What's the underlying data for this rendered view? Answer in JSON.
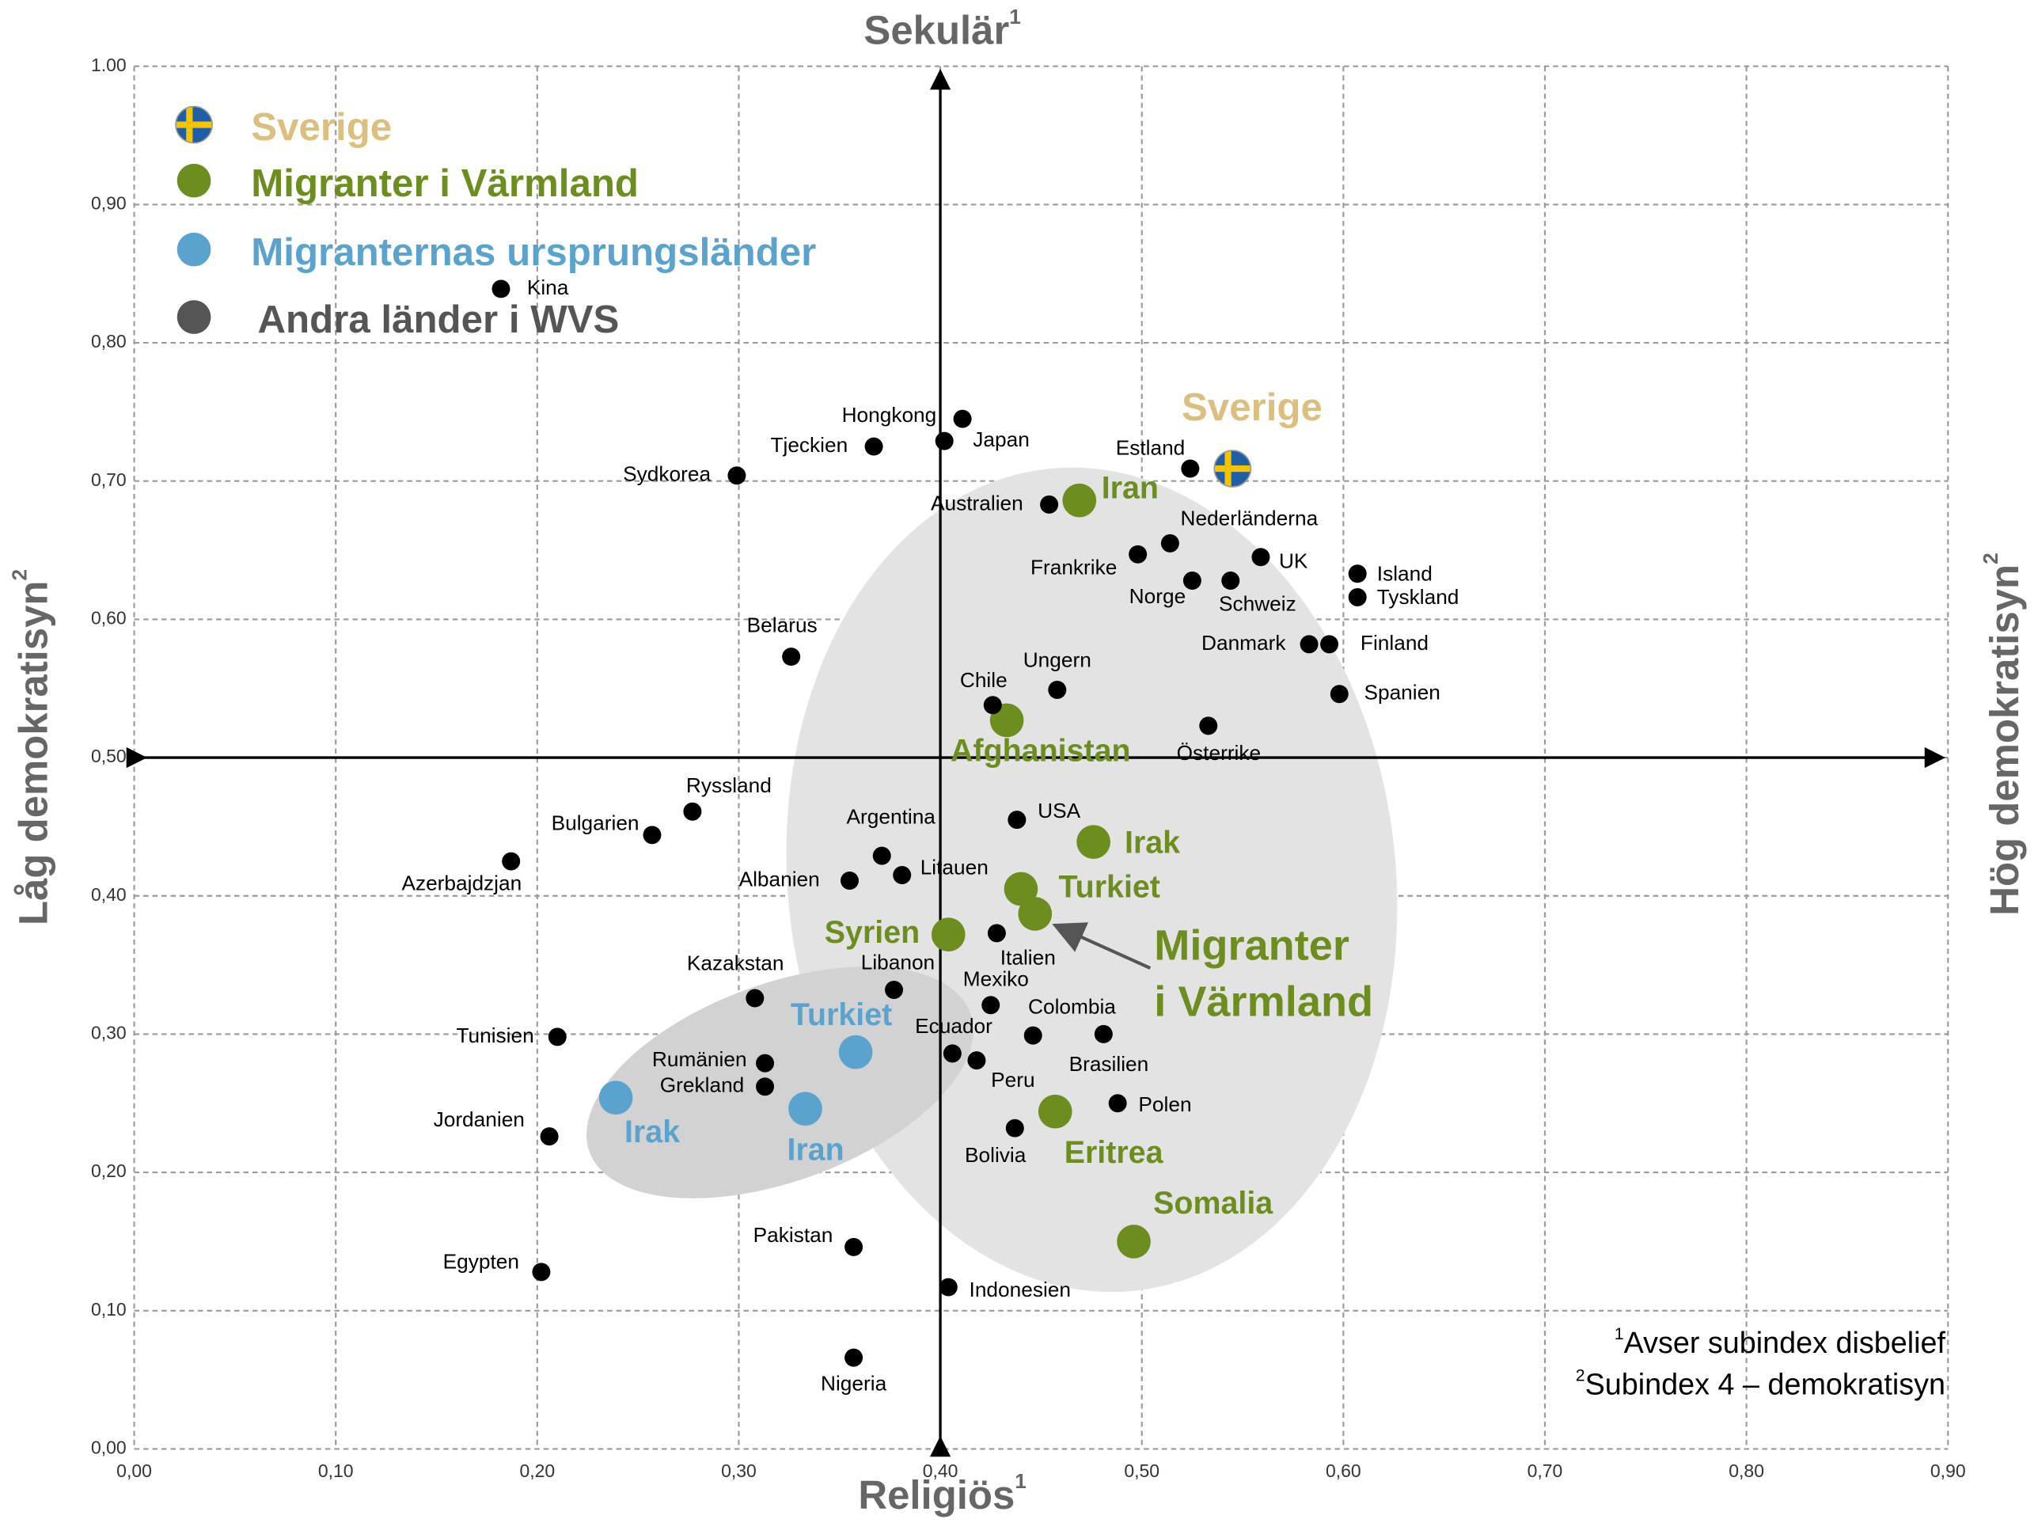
{
  "chart_data": {
    "type": "scatter",
    "xlim": [
      0,
      0.9
    ],
    "ylim": [
      0,
      1
    ],
    "xticks": [
      {
        "value": 0,
        "label": "0,00"
      },
      {
        "value": 0.1,
        "label": "0,10"
      },
      {
        "value": 0.2,
        "label": "0,20"
      },
      {
        "value": 0.3,
        "label": "0,30"
      },
      {
        "value": 0.4,
        "label": "0,40"
      },
      {
        "value": 0.5,
        "label": "0,50"
      },
      {
        "value": 0.6,
        "label": "0,60"
      },
      {
        "value": 0.7,
        "label": "0,70"
      },
      {
        "value": 0.8,
        "label": "0,80"
      },
      {
        "value": 0.9,
        "label": "0,90"
      }
    ],
    "yticks": [
      {
        "value": 0,
        "label": "0,00"
      },
      {
        "value": 0.1,
        "label": "0,10"
      },
      {
        "value": 0.2,
        "label": "0,20"
      },
      {
        "value": 0.3,
        "label": "0,30"
      },
      {
        "value": 0.4,
        "label": "0,40"
      },
      {
        "value": 0.5,
        "label": "0,50"
      },
      {
        "value": 0.6,
        "label": "0,60"
      },
      {
        "value": 0.7,
        "label": "0,70"
      },
      {
        "value": 0.8,
        "label": "0,80"
      },
      {
        "value": 0.9,
        "label": "0,90"
      },
      {
        "value": 1,
        "label": "1.00"
      }
    ],
    "grid": true,
    "quadrant_lines": {
      "x": 0.4,
      "y": 0.5
    },
    "axis_top": {
      "text": "Sekulär",
      "sup": "1"
    },
    "axis_bottom": {
      "text": "Religiös",
      "sup": "1"
    },
    "axis_left": {
      "text": "Låg demokratisyn",
      "sup": "2"
    },
    "axis_right": {
      "text": "Hög demokratisyn",
      "sup": "2"
    },
    "annotation": [
      "Migranter",
      "i Värmland"
    ],
    "footnotes": [
      {
        "mark": "1",
        "text": "Avser subindex disbelief"
      },
      {
        "mark": "2",
        "text": "Subindex 4 – demokratisyn"
      }
    ],
    "series": [
      {
        "name": "Sverige",
        "color": "#dcbf7e",
        "x": [
          0.545
        ],
        "y": [
          0.709
        ],
        "labels": [
          "Sverige"
        ]
      },
      {
        "name": "Migranter i Värmland",
        "color": "#6b8e1f",
        "x": [
          0.469,
          0.433,
          0.476,
          0.44,
          0.447,
          0.404,
          0.457,
          0.496
        ],
        "y": [
          0.686,
          0.527,
          0.439,
          0.405,
          0.387,
          0.372,
          0.244,
          0.15
        ],
        "labels": [
          "Iran",
          "Afghanistan",
          "Irak",
          "Turkiet",
          null,
          "Syrien",
          "Eritrea",
          "Somalia"
        ]
      },
      {
        "name": "Migranternas ursprungsländer",
        "color": "#5ba3cf",
        "x": [
          0.358,
          0.239,
          0.333
        ],
        "y": [
          0.287,
          0.254,
          0.246
        ],
        "labels": [
          "Turkiet",
          "Irak",
          "Iran"
        ]
      },
      {
        "name": "Andra länder i WVS",
        "color": "#000000",
        "x": [
          0.182,
          0.411,
          0.402,
          0.367,
          0.299,
          0.524,
          0.454,
          0.514,
          0.498,
          0.559,
          0.525,
          0.544,
          0.607,
          0.607,
          0.583,
          0.593,
          0.598,
          0.326,
          0.426,
          0.458,
          0.533,
          0.277,
          0.257,
          0.187,
          0.371,
          0.438,
          0.381,
          0.355,
          0.428,
          0.308,
          0.377,
          0.425,
          0.446,
          0.481,
          0.21,
          0.406,
          0.418,
          0.313,
          0.313,
          0.488,
          0.437,
          0.206,
          0.357,
          0.202,
          0.404,
          0.357
        ],
        "y": [
          0.839,
          0.745,
          0.729,
          0.725,
          0.704,
          0.709,
          0.683,
          0.655,
          0.647,
          0.645,
          0.628,
          0.628,
          0.633,
          0.616,
          0.582,
          0.582,
          0.546,
          0.573,
          0.538,
          0.549,
          0.523,
          0.461,
          0.444,
          0.425,
          0.429,
          0.455,
          0.415,
          0.411,
          0.373,
          0.326,
          0.332,
          0.321,
          0.299,
          0.3,
          0.298,
          0.286,
          0.281,
          0.279,
          0.262,
          0.25,
          0.232,
          0.226,
          0.146,
          0.128,
          0.117,
          0.066
        ],
        "labels": [
          "Kina",
          "Hongkong",
          "Japan",
          "Tjeckien",
          "Sydkorea",
          "Estland",
          "Australien",
          "Nederländerna",
          "Frankrike",
          "UK",
          "Norge",
          "Schweiz",
          "Island",
          "Tyskland",
          "Danmark",
          "Finland",
          "Spanien",
          "Belarus",
          "Chile",
          "Ungern",
          "Österrike",
          "Ryssland",
          "Bulgarien",
          "Azerbajdzjan",
          "Argentina",
          "USA",
          "Litauen",
          "Albanien",
          "Italien",
          "Kazakstan",
          "Libanon",
          "Mexiko",
          "Colombia",
          "Brasilien",
          "Tunisien",
          "Ecuador",
          "Peru",
          "Rumänien",
          "Grekland",
          "Polen",
          "Bolivia",
          "Jordanien",
          "Pakistan",
          "Egypten",
          "Indonesien",
          "Nigeria"
        ]
      }
    ]
  }
}
